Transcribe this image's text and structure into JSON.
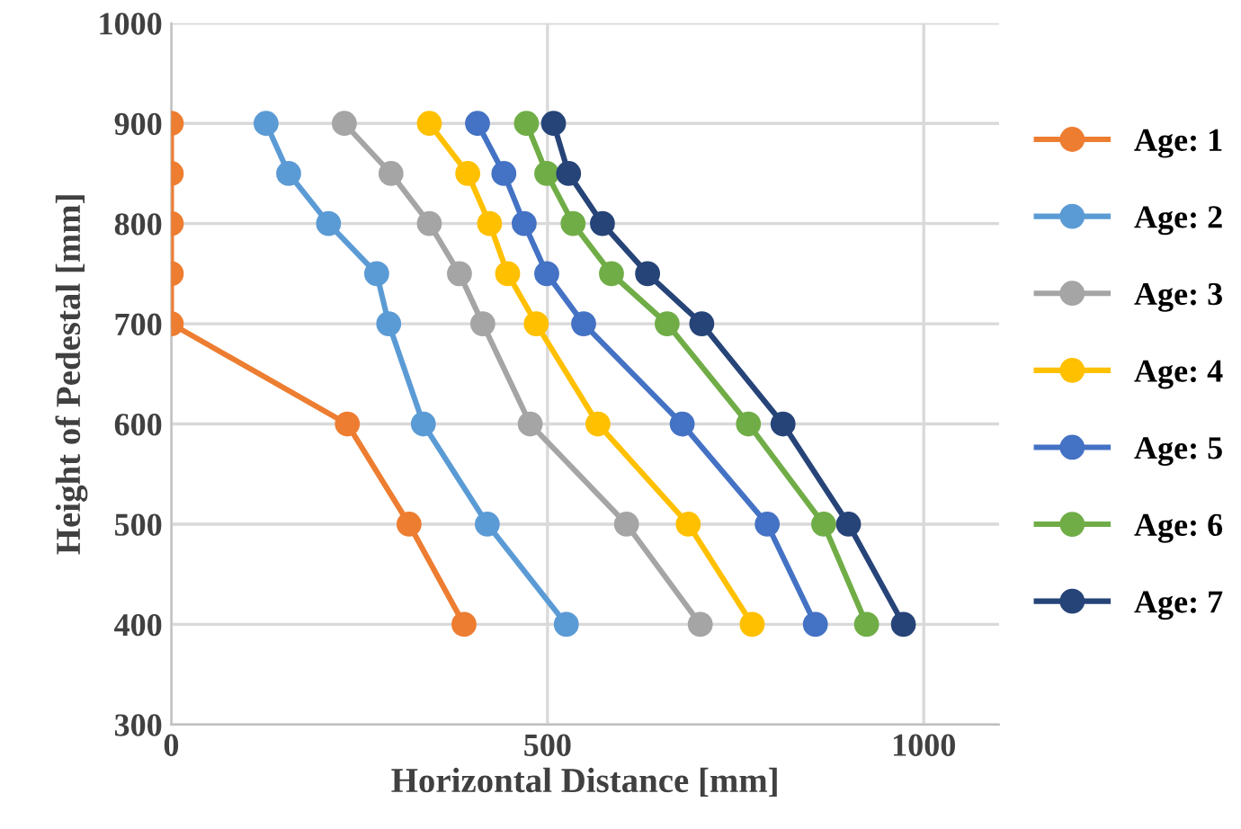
{
  "chart_data": {
    "type": "line",
    "xlabel": "Horizontal Distance [mm]",
    "ylabel": "Height of Pedestal [mm]",
    "xlim": [
      0,
      1100
    ],
    "xticks": [
      0,
      500,
      1000
    ],
    "ylim": [
      300,
      1000
    ],
    "yticks": [
      300,
      400,
      500,
      600,
      700,
      800,
      900,
      1000
    ],
    "grid": true,
    "legend": "right",
    "marker": "circle",
    "line_style": "solid",
    "series": [
      {
        "name": "Age: 1",
        "color": "#ed7d31",
        "x": [
          0,
          0,
          0,
          0,
          0,
          234,
          316,
          389
        ],
        "values": [
          900,
          850,
          800,
          750,
          700,
          600,
          500,
          400
        ]
      },
      {
        "name": "Age: 2",
        "color": "#5b9bd5",
        "x": [
          126,
          156,
          209,
          273,
          289,
          335,
          420,
          525
        ],
        "values": [
          900,
          850,
          800,
          750,
          700,
          600,
          500,
          400
        ]
      },
      {
        "name": "Age: 3",
        "color": "#a5a5a5",
        "x": [
          230,
          292,
          343,
          383,
          414,
          477,
          605,
          703
        ],
        "values": [
          900,
          850,
          800,
          750,
          700,
          600,
          500,
          400
        ]
      },
      {
        "name": "Age: 4",
        "color": "#ffc000",
        "x": [
          343,
          394,
          423,
          447,
          485,
          567,
          687,
          772
        ],
        "values": [
          900,
          850,
          800,
          750,
          700,
          600,
          500,
          400
        ]
      },
      {
        "name": "Age: 5",
        "color": "#4472c4",
        "x": [
          407,
          442,
          469,
          499,
          548,
          679,
          792,
          856
        ],
        "values": [
          900,
          850,
          800,
          750,
          700,
          600,
          500,
          400
        ]
      },
      {
        "name": "Age: 6",
        "color": "#70ad47",
        "x": [
          472,
          499,
          534,
          585,
          659,
          767,
          867,
          924
        ],
        "values": [
          900,
          850,
          800,
          750,
          700,
          600,
          500,
          400
        ]
      },
      {
        "name": "Age: 7",
        "color": "#264478",
        "x": [
          508,
          528,
          573,
          633,
          705,
          813,
          900,
          973
        ],
        "values": [
          900,
          850,
          800,
          750,
          700,
          600,
          500,
          400
        ]
      }
    ]
  }
}
